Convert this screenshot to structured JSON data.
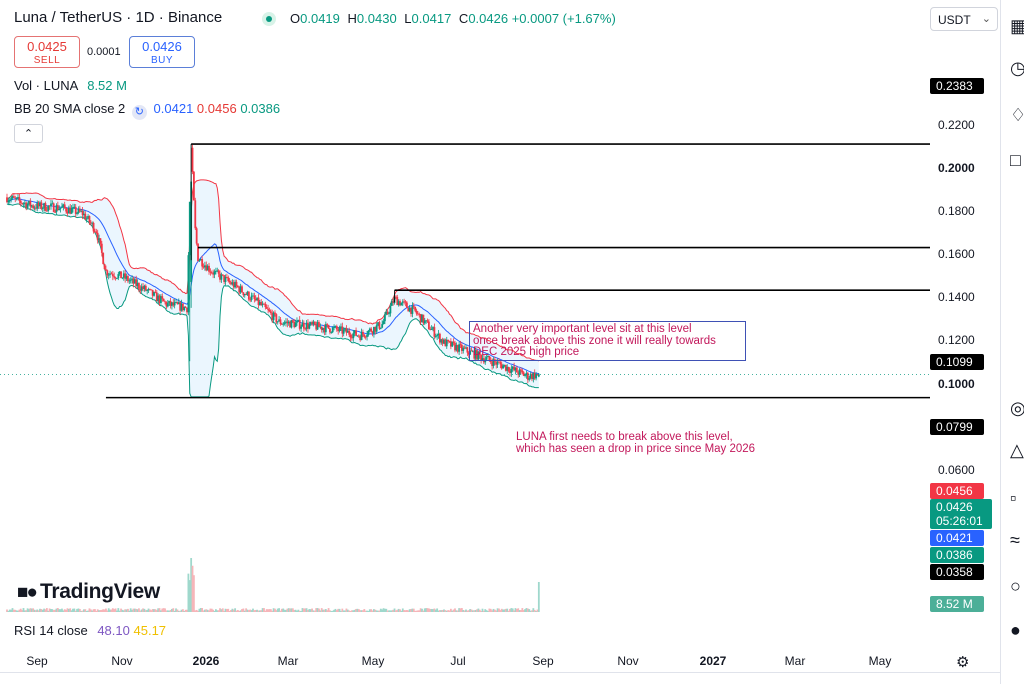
{
  "header": {
    "title": "Luna / TetherUS · 1D · Binance",
    "ohlc": [
      {
        "k": "O",
        "v": "0.0419"
      },
      {
        "k": "H",
        "v": "0.0430"
      },
      {
        "k": "L",
        "v": "0.0417"
      },
      {
        "k": "C",
        "v": "0.0426"
      }
    ],
    "change": "+0.0007 (+1.67%)",
    "currency": "USDT"
  },
  "trade": {
    "sell_price": "0.0425",
    "sell_label": "SELL",
    "spread": "0.0001",
    "buy_price": "0.0426",
    "buy_label": "BUY"
  },
  "indicators": {
    "vol_label": "Vol · LUNA",
    "vol_value": "8.52 M",
    "bb_label": "BB 20 SMA close 2",
    "bb_basis": "0.0421",
    "bb_upper": "0.0456",
    "bb_lower": "0.0386",
    "rsi_label": "RSI 14 close",
    "rsi_value": "48.10",
    "rsi_ma": "45.17"
  },
  "annotations": {
    "box_note": [
      "Another very important level sit at this level",
      "once break above this zone it will really towards",
      "DEC 2025 high price"
    ],
    "plain_note": [
      "LUNA first needs to break above this level,",
      "which has seen a drop in price since May 2026"
    ]
  },
  "price_scale": {
    "ticks": [
      "0.2200",
      "0.2000",
      "0.1800",
      "0.1600",
      "0.1400",
      "0.1200",
      "0.1000",
      "0.0600"
    ],
    "bold_ticks": [
      "0.2000",
      "0.1000"
    ],
    "labels": [
      {
        "text": "0.2383",
        "color": "#000000"
      },
      {
        "text": "0.1099",
        "color": "#000000"
      },
      {
        "text": "0.0799",
        "color": "#000000"
      },
      {
        "text": "0.0456",
        "color": "#f23645"
      },
      {
        "text": "0.0426",
        "color": "#089981"
      },
      {
        "text": "05:26:01",
        "color": "#089981"
      },
      {
        "text": "0.0421",
        "color": "#2962ff"
      },
      {
        "text": "0.0386",
        "color": "#089981"
      },
      {
        "text": "0.0358",
        "color": "#000000"
      },
      {
        "text": "8.52 M",
        "color": "#4caf98"
      }
    ]
  },
  "time_axis": [
    "Sep",
    "Nov",
    "2026",
    "Mar",
    "May",
    "Jul",
    "Sep",
    "Nov",
    "2027",
    "Mar",
    "May"
  ],
  "brand": "TradingView",
  "colors": {
    "up": "#089981",
    "down": "#f23645",
    "bb_upper": "#f23645",
    "bb_basis": "#2962ff",
    "bb_lower": "#089981",
    "bb_fill": "#2196f3"
  },
  "chart_data": {
    "type": "candlestick",
    "symbol": "LUNA/USDT",
    "interval": "1D",
    "scale": "log",
    "ylim": [
      0.033,
      0.26
    ],
    "x_start": "2025-08-01",
    "x_end": "2027-05-31",
    "price_path": [
      [
        "2025-08-01",
        0.16
      ],
      [
        "2025-08-20",
        0.15
      ],
      [
        "2025-09-10",
        0.148
      ],
      [
        "2025-09-25",
        0.142
      ],
      [
        "2025-10-05",
        0.125
      ],
      [
        "2025-10-12",
        0.092
      ],
      [
        "2025-10-25",
        0.088
      ],
      [
        "2025-11-10",
        0.08
      ],
      [
        "2025-11-25",
        0.072
      ],
      [
        "2025-12-10",
        0.07
      ],
      [
        "2025-12-13",
        0.23
      ],
      [
        "2025-12-16",
        0.125
      ],
      [
        "2025-12-18",
        0.102
      ],
      [
        "2025-12-28",
        0.092
      ],
      [
        "2026-01-15",
        0.082
      ],
      [
        "2026-02-01",
        0.072
      ],
      [
        "2026-02-15",
        0.063
      ],
      [
        "2026-03-01",
        0.062
      ],
      [
        "2026-03-25",
        0.06
      ],
      [
        "2026-04-15",
        0.057
      ],
      [
        "2026-05-01",
        0.062
      ],
      [
        "2026-05-10",
        0.075
      ],
      [
        "2026-05-25",
        0.068
      ],
      [
        "2026-06-15",
        0.054
      ],
      [
        "2026-07-05",
        0.05
      ],
      [
        "2026-07-25",
        0.046
      ],
      [
        "2026-08-15",
        0.042
      ],
      [
        "2026-08-23",
        0.0426
      ]
    ],
    "extremes": {
      "high": 0.2383,
      "high_date": "2025-12-13",
      "low": 0.0358
    },
    "horizontal_levels": [
      {
        "price": 0.2383,
        "from": "2025-12-13"
      },
      {
        "price": 0.1099,
        "from": "2025-12-18"
      },
      {
        "price": 0.0799,
        "from": "2026-05-10"
      },
      {
        "price": 0.0358,
        "from": "2025-10-12"
      }
    ],
    "last": {
      "date": "2026-08-23",
      "price": 0.0426,
      "bb_upper": 0.0456,
      "bb_basis": 0.0421,
      "bb_lower": 0.0386,
      "volume": "8.52 M"
    },
    "volume_scale_max_millions": 60
  }
}
